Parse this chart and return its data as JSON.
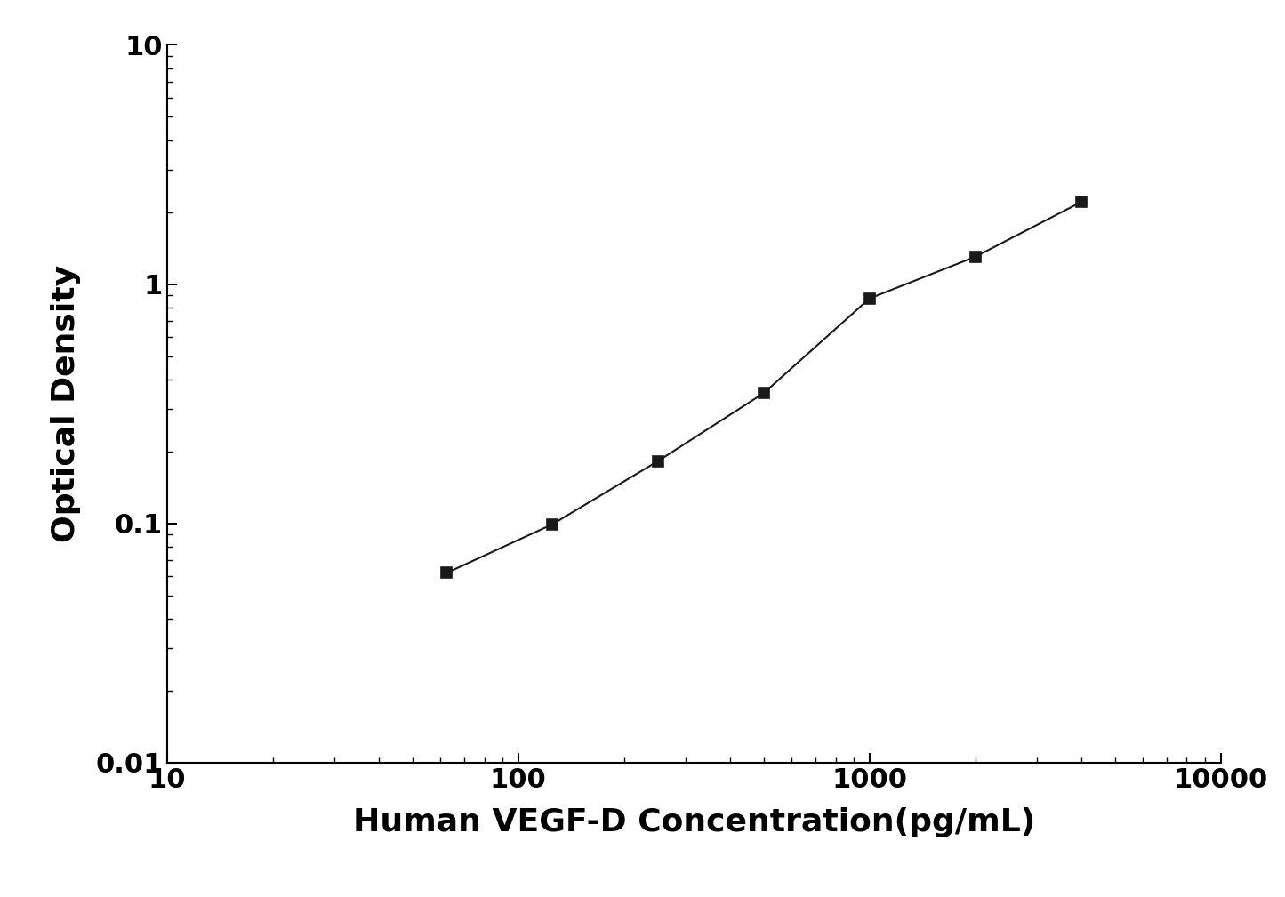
{
  "x": [
    62.5,
    125,
    250,
    500,
    1000,
    2000,
    4000
  ],
  "y": [
    0.062,
    0.099,
    0.182,
    0.35,
    0.87,
    1.3,
    2.2
  ],
  "xlabel": "Human VEGF-D Concentration(pg/mL)",
  "ylabel": "Optical Density",
  "xlim": [
    10,
    10000
  ],
  "ylim": [
    0.01,
    10
  ],
  "line_color": "#1a1a1a",
  "marker": "s",
  "marker_size": 9,
  "marker_facecolor": "#1a1a1a",
  "marker_edgecolor": "#1a1a1a",
  "linewidth": 1.5,
  "xlabel_fontsize": 26,
  "ylabel_fontsize": 26,
  "tick_fontsize": 22,
  "background_color": "#ffffff"
}
